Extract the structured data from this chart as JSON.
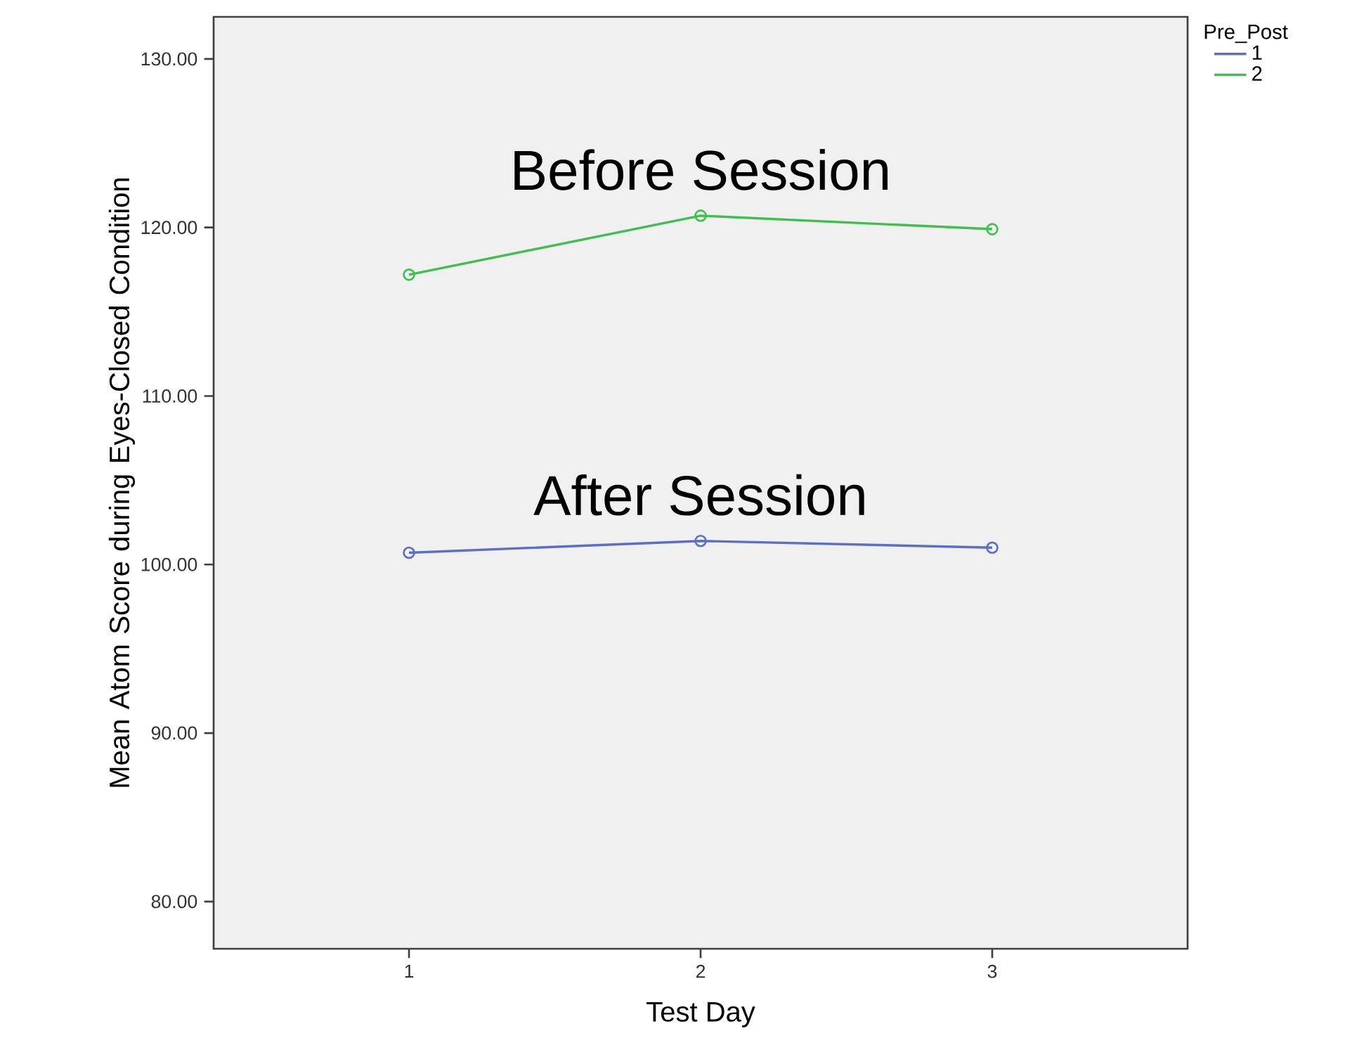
{
  "chart_data": {
    "type": "line",
    "xlabel": "Test Day",
    "ylabel": "Mean Atom Score during Eyes-Closed Condition",
    "legend_title": "Pre_Post",
    "x": [
      1,
      2,
      3
    ],
    "xlim": [
      0.33,
      3.67
    ],
    "xticks": [
      1,
      2,
      3
    ],
    "ylim": [
      77.2,
      132.5
    ],
    "yticks": [
      {
        "value": 80,
        "label": "80.00"
      },
      {
        "value": 90,
        "label": "90.00"
      },
      {
        "value": 100,
        "label": "100.00"
      },
      {
        "value": 110,
        "label": "110.00"
      },
      {
        "value": 120,
        "label": "120.00"
      },
      {
        "value": 130,
        "label": "130.00"
      }
    ],
    "series": [
      {
        "name": "1",
        "color": "#5b6fc5",
        "values": [
          100.7,
          101.4,
          101.0
        ]
      },
      {
        "name": "2",
        "color": "#3fbf4f",
        "values": [
          117.2,
          120.7,
          119.9
        ]
      }
    ],
    "annotations": [
      {
        "text": "Before Session",
        "x": 2,
        "y": 120.7
      },
      {
        "text": "After Session",
        "x": 2,
        "y": 101.4
      }
    ],
    "legend": "top right",
    "marker": "circle",
    "line_style": "solid",
    "grid": false
  }
}
